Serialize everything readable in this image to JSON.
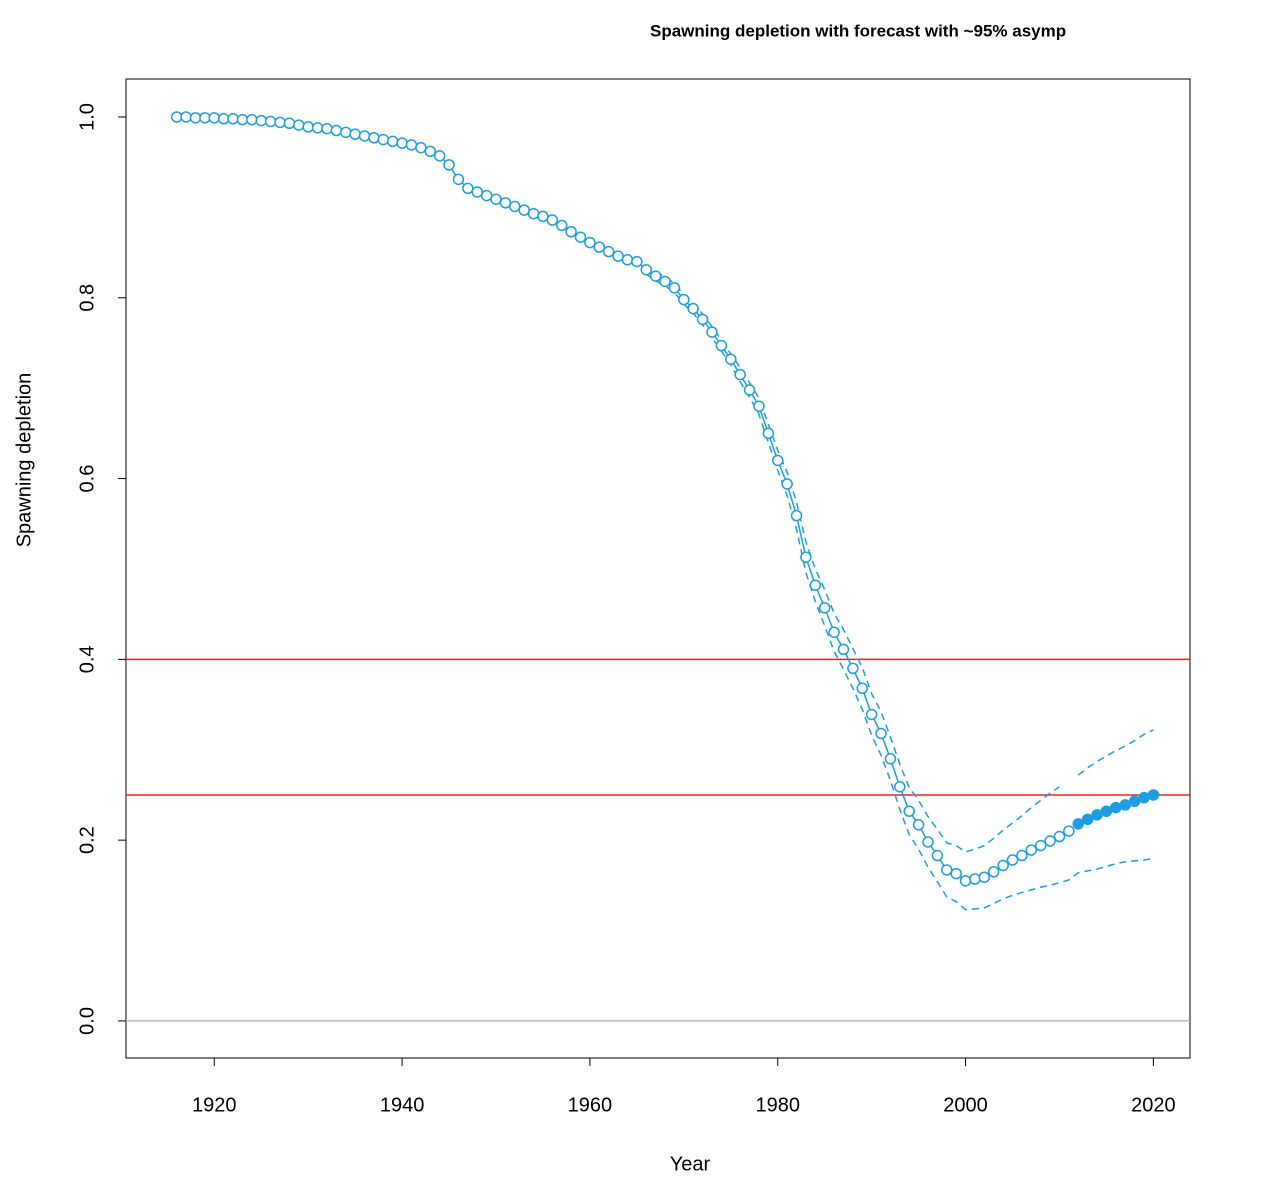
{
  "chart_data": {
    "type": "line",
    "title": "Spawning depletion with forecast with ~95% asymp",
    "xlabel": "Year",
    "ylabel": "Spawning depletion",
    "color": "#1a9ee8",
    "xlim": [
      1910.6,
      2023.9
    ],
    "ylim": [
      -0.041,
      1.042
    ],
    "xticks": [
      1920,
      1940,
      1960,
      1980,
      2000,
      2020
    ],
    "yticks": [
      {
        "value": 0,
        "label": "0.0"
      },
      {
        "value": 0.2,
        "label": "0.2"
      },
      {
        "value": 0.4,
        "label": "0.4"
      },
      {
        "value": 0.6,
        "label": "0.6"
      },
      {
        "value": 0.8,
        "label": "0.8"
      },
      {
        "value": 1,
        "label": "1.0"
      }
    ],
    "hlines": [
      {
        "value": 0.4,
        "color": "#e8281e"
      },
      {
        "value": 0.25,
        "color": "#e8281e"
      },
      {
        "value": 0,
        "color": "#bbbbbb"
      }
    ],
    "x": [
      1916,
      1917,
      1918,
      1919,
      1920,
      1921,
      1922,
      1923,
      1924,
      1925,
      1926,
      1927,
      1928,
      1929,
      1930,
      1931,
      1932,
      1933,
      1934,
      1935,
      1936,
      1937,
      1938,
      1939,
      1940,
      1941,
      1942,
      1943,
      1944,
      1945,
      1946,
      1947,
      1948,
      1949,
      1950,
      1951,
      1952,
      1953,
      1954,
      1955,
      1956,
      1957,
      1958,
      1959,
      1960,
      1961,
      1962,
      1963,
      1964,
      1965,
      1966,
      1967,
      1968,
      1969,
      1970,
      1971,
      1972,
      1973,
      1974,
      1975,
      1976,
      1977,
      1978,
      1979,
      1980,
      1981,
      1982,
      1983,
      1984,
      1985,
      1986,
      1987,
      1988,
      1989,
      1990,
      1991,
      1992,
      1993,
      1994,
      1995,
      1996,
      1997,
      1998,
      1999,
      2000,
      2001,
      2002,
      2003,
      2004,
      2005,
      2006,
      2007,
      2008,
      2009,
      2010,
      2011
    ],
    "values": [
      1.0,
      1.0,
      0.999,
      0.999,
      0.999,
      0.998,
      0.998,
      0.997,
      0.997,
      0.996,
      0.995,
      0.994,
      0.993,
      0.991,
      0.989,
      0.988,
      0.987,
      0.985,
      0.983,
      0.981,
      0.979,
      0.977,
      0.975,
      0.973,
      0.971,
      0.969,
      0.966,
      0.962,
      0.957,
      0.947,
      0.931,
      0.921,
      0.917,
      0.913,
      0.909,
      0.905,
      0.901,
      0.897,
      0.893,
      0.89,
      0.886,
      0.88,
      0.873,
      0.867,
      0.861,
      0.856,
      0.851,
      0.846,
      0.842,
      0.84,
      0.831,
      0.824,
      0.818,
      0.811,
      0.798,
      0.788,
      0.776,
      0.762,
      0.747,
      0.732,
      0.715,
      0.698,
      0.68,
      0.65,
      0.62,
      0.594,
      0.559,
      0.513,
      0.482,
      0.457,
      0.43,
      0.411,
      0.39,
      0.368,
      0.339,
      0.318,
      0.29,
      0.259,
      0.232,
      0.217,
      0.198,
      0.183,
      0.167,
      0.163,
      0.155,
      0.157,
      0.159,
      0.165,
      0.172,
      0.178,
      0.183,
      0.189,
      0.194,
      0.199,
      0.204,
      0.21
    ],
    "forecast": {
      "x": [
        2012,
        2013,
        2014,
        2015,
        2016,
        2017,
        2018,
        2019,
        2020
      ],
      "values": [
        0.218,
        0.223,
        0.228,
        0.232,
        0.236,
        0.239,
        0.243,
        0.247,
        0.25
      ]
    },
    "interval": {
      "x": [
        1966,
        1967,
        1968,
        1969,
        1970,
        1971,
        1972,
        1973,
        1974,
        1975,
        1976,
        1977,
        1978,
        1979,
        1980,
        1981,
        1982,
        1983,
        1984,
        1985,
        1986,
        1987,
        1988,
        1989,
        1990,
        1991,
        1992,
        1993,
        1994,
        1995,
        1996,
        1997,
        1998,
        1999,
        2000,
        2001,
        2002,
        2003,
        2004,
        2005,
        2006,
        2007,
        2008,
        2009,
        2010,
        2011,
        2012,
        2013,
        2014,
        2015,
        2016,
        2017,
        2018,
        2019,
        2020
      ],
      "upper": [
        0.836,
        0.829,
        0.823,
        0.816,
        0.803,
        0.793,
        0.782,
        0.768,
        0.753,
        0.738,
        0.723,
        0.706,
        0.689,
        0.66,
        0.631,
        0.607,
        0.574,
        0.53,
        0.5,
        0.477,
        0.451,
        0.433,
        0.412,
        0.391,
        0.362,
        0.342,
        0.314,
        0.284,
        0.258,
        0.244,
        0.226,
        0.212,
        0.197,
        0.194,
        0.187,
        0.19,
        0.194,
        0.202,
        0.211,
        0.219,
        0.227,
        0.236,
        0.244,
        0.252,
        0.259,
        null,
        0.272,
        0.28,
        0.287,
        0.293,
        0.299,
        0.304,
        0.31,
        0.317,
        0.322
      ],
      "lower": [
        0.826,
        0.819,
        0.813,
        0.806,
        0.793,
        0.783,
        0.77,
        0.756,
        0.741,
        0.726,
        0.707,
        0.69,
        0.671,
        0.64,
        0.609,
        0.581,
        0.544,
        0.496,
        0.464,
        0.437,
        0.409,
        0.389,
        0.368,
        0.345,
        0.316,
        0.294,
        0.266,
        0.234,
        0.206,
        0.19,
        0.17,
        0.154,
        0.137,
        0.132,
        0.123,
        0.124,
        0.125,
        0.13,
        0.135,
        0.139,
        0.142,
        0.145,
        0.148,
        0.15,
        0.153,
        0.156,
        0.164,
        0.166,
        0.168,
        0.171,
        0.174,
        0.176,
        0.177,
        0.178,
        0.18
      ]
    }
  }
}
